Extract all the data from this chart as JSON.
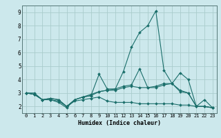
{
  "xlabel": "Humidex (Indice chaleur)",
  "background_color": "#cce8ec",
  "grid_color": "#aacccc",
  "line_color": "#1a6e6a",
  "xlim": [
    -0.5,
    23.5
  ],
  "ylim": [
    1.5,
    9.5
  ],
  "xticks": [
    0,
    1,
    2,
    3,
    4,
    5,
    6,
    7,
    8,
    9,
    10,
    11,
    12,
    13,
    14,
    15,
    16,
    17,
    18,
    19,
    20,
    21,
    22,
    23
  ],
  "yticks": [
    2,
    3,
    4,
    5,
    6,
    7,
    8,
    9
  ],
  "series": [
    [
      3.0,
      3.0,
      2.5,
      2.5,
      2.3,
      1.9,
      2.5,
      2.7,
      2.8,
      4.4,
      3.3,
      3.3,
      4.6,
      6.4,
      7.5,
      8.0,
      9.1,
      4.7,
      3.7,
      4.5,
      4.0,
      2.0,
      2.5,
      1.9
    ],
    [
      3.0,
      2.9,
      2.5,
      2.5,
      2.4,
      2.0,
      2.5,
      2.7,
      2.9,
      3.1,
      3.2,
      3.3,
      3.5,
      3.6,
      4.8,
      3.4,
      3.4,
      3.6,
      3.7,
      3.1,
      3.0,
      2.0,
      2.0,
      1.9
    ],
    [
      3.0,
      2.9,
      2.5,
      2.6,
      2.5,
      2.0,
      2.5,
      2.7,
      2.8,
      3.1,
      3.2,
      3.2,
      3.4,
      3.5,
      3.4,
      3.4,
      3.5,
      3.7,
      3.7,
      3.2,
      3.0,
      2.0,
      2.0,
      1.9
    ],
    [
      3.0,
      2.9,
      2.5,
      2.6,
      2.5,
      2.0,
      2.4,
      2.5,
      2.6,
      2.7,
      2.4,
      2.3,
      2.3,
      2.3,
      2.2,
      2.2,
      2.2,
      2.2,
      2.2,
      2.1,
      2.1,
      2.0,
      2.0,
      1.9
    ]
  ]
}
